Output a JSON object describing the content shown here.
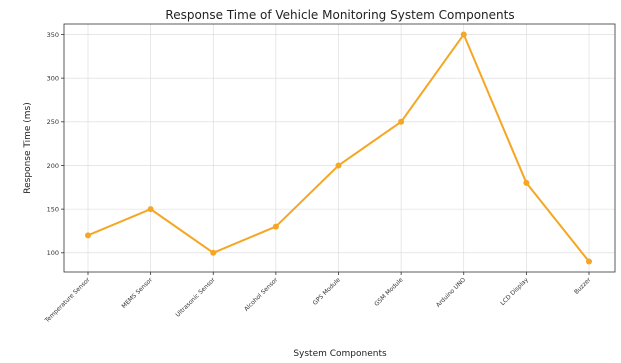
{
  "chart_data": {
    "type": "line",
    "title": "Response Time of Vehicle Monitoring System Components",
    "xlabel": "System Components",
    "ylabel": "Response Time (ms)",
    "categories": [
      "Temperature Sensor",
      "MEMS Sensor",
      "Ultrasonic Sensor",
      "Alcohol Sensor",
      "GPS Module",
      "GSM Module",
      "Arduino UNO",
      "LCD Display",
      "Buzzer"
    ],
    "series": [
      {
        "values": [
          120,
          150,
          100,
          130,
          200,
          250,
          350,
          180,
          90
        ],
        "color": "#f5a623"
      }
    ],
    "yticks": [
      100,
      150,
      200,
      250,
      300,
      350
    ],
    "ylim": [
      78,
      362
    ],
    "grid": true
  }
}
